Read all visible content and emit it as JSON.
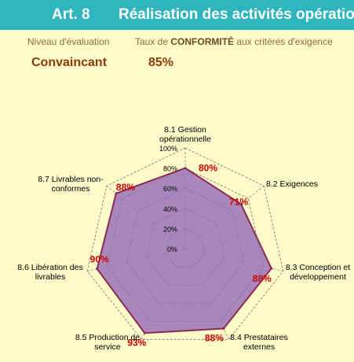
{
  "header": {
    "article": "Art. 8",
    "title": "Réalisation des activités opératio"
  },
  "summary": {
    "niveau_label": "Niveau d'évaluation",
    "taux_label_prefix": "Taux de",
    "taux_label_bold": "CONFORMITÉ",
    "taux_label_suffix": "aux critères d'exigence",
    "niveau_value": "Convaincant",
    "taux_value": "85%"
  },
  "colors": {
    "header_bg": "#2eb5bd",
    "page_bg": "#fdf9c8",
    "fill": "#a07ab8",
    "outline": "#8a2a52",
    "value_label": "#cc0000"
  },
  "chart_data": {
    "type": "radar",
    "title": "",
    "categories": [
      [
        "8.1 Gestion",
        "opérationnelle"
      ],
      [
        "8.2 Exigences"
      ],
      [
        "8.3 Conception et",
        "développement"
      ],
      [
        "8.4 Prestataires",
        "externes"
      ],
      [
        "8.5 Production de",
        "service"
      ],
      [
        "8.6 Libération des",
        "livrables"
      ],
      [
        "8.7 Livrables non-",
        "conformes"
      ]
    ],
    "values": [
      80,
      71,
      88,
      88,
      93,
      90,
      88
    ],
    "value_labels": [
      "80%",
      "71%",
      "88%",
      "88%",
      "93%",
      "90%",
      "88%"
    ],
    "ticks": [
      "0%",
      "20%",
      "40%",
      "60%",
      "80%",
      "100%"
    ],
    "range": [
      0,
      100
    ],
    "grid": true,
    "legend": "none"
  }
}
